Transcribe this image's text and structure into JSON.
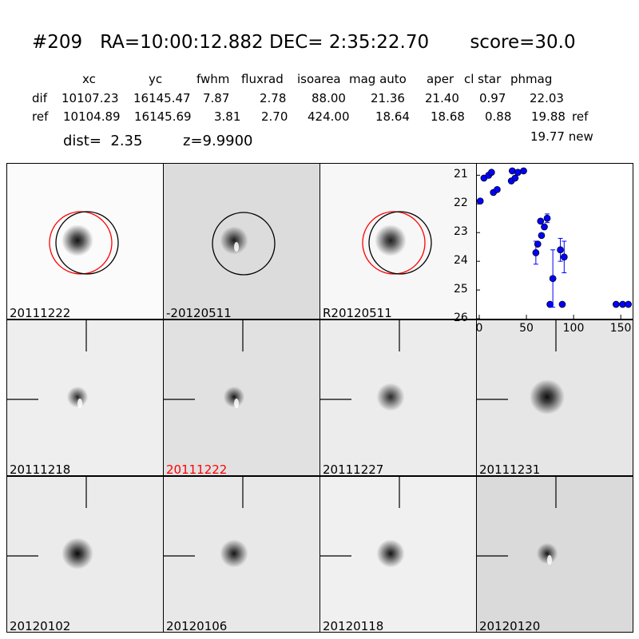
{
  "header": {
    "id": "#209",
    "ra": "RA=10:00:12.882",
    "dec": "DEC= 2:35:22.70",
    "score": "score=30.0",
    "columns": [
      "xc",
      "yc",
      "fwhm",
      "fluxrad",
      "isoarea",
      "mag auto",
      "aper",
      "cl star",
      "phmag"
    ],
    "rows": [
      {
        "label": "dif",
        "values": [
          "10107.23",
          "16145.47",
          "7.87",
          "2.78",
          "88.00",
          "21.36",
          "21.40",
          "0.97",
          "22.03"
        ],
        "suffix": ""
      },
      {
        "label": "ref",
        "values": [
          "10104.89",
          "16145.69",
          "3.81",
          "2.70",
          "424.00",
          "18.64",
          "18.68",
          "0.88",
          "19.88"
        ],
        "suffix": "ref"
      }
    ],
    "new_mag": "19.77 new",
    "dist": "dist=  2.35",
    "z": "z=9.9900"
  },
  "panels": [
    {
      "label": "20111222",
      "highlight": false
    },
    {
      "label": "-20120511",
      "highlight": false
    },
    {
      "label": "R20120511",
      "highlight": false
    },
    {
      "label": "20111218",
      "highlight": false
    },
    {
      "label": "20111222",
      "highlight": true
    },
    {
      "label": "20111227",
      "highlight": false
    },
    {
      "label": "20111231",
      "highlight": false
    },
    {
      "label": "20120102",
      "highlight": false
    },
    {
      "label": "20120106",
      "highlight": false
    },
    {
      "label": "20120118",
      "highlight": false
    },
    {
      "label": "20120120",
      "highlight": false
    }
  ],
  "colors": {
    "point": "#0000ff",
    "red_circle": "#ff0000",
    "highlight_label": "#ff0000"
  },
  "chart_data": {
    "type": "scatter",
    "xlim": [
      0,
      160
    ],
    "ylim": [
      26,
      20.6
    ],
    "y_inverted": true,
    "x_ticks": [
      "0",
      "50",
      "100",
      "150"
    ],
    "y_ticks": [
      "21",
      "22",
      "23",
      "24",
      "25",
      "26"
    ],
    "series": [
      {
        "points": [
          {
            "x": 1,
            "y": 21.9,
            "err": 0
          },
          {
            "x": 5,
            "y": 21.1,
            "err": 0
          },
          {
            "x": 10,
            "y": 21.0,
            "err": 0
          },
          {
            "x": 13,
            "y": 20.9,
            "err": 0
          },
          {
            "x": 15,
            "y": 21.6,
            "err": 0
          },
          {
            "x": 19,
            "y": 21.5,
            "err": 0
          },
          {
            "x": 34,
            "y": 21.2,
            "err": 0
          },
          {
            "x": 35,
            "y": 20.85,
            "err": 0
          },
          {
            "x": 38,
            "y": 21.1,
            "err": 0
          },
          {
            "x": 41,
            "y": 20.9,
            "err": 0
          },
          {
            "x": 47,
            "y": 20.85,
            "err": 0
          },
          {
            "x": 60,
            "y": 23.7,
            "err": 0.4
          },
          {
            "x": 62,
            "y": 23.4,
            "err": 0
          },
          {
            "x": 65,
            "y": 22.6,
            "err": 0
          },
          {
            "x": 66,
            "y": 23.1,
            "err": 0
          },
          {
            "x": 69,
            "y": 22.8,
            "err": 0
          },
          {
            "x": 72,
            "y": 22.5,
            "err": 0.15
          },
          {
            "x": 75,
            "y": 25.5,
            "err": 0
          },
          {
            "x": 78,
            "y": 24.6,
            "err": 1.0
          },
          {
            "x": 86,
            "y": 23.6,
            "err": 0.4
          },
          {
            "x": 88,
            "y": 25.5,
            "err": 0
          },
          {
            "x": 90,
            "y": 23.85,
            "err": 0.55
          },
          {
            "x": 145,
            "y": 25.5,
            "err": 0
          },
          {
            "x": 152,
            "y": 25.5,
            "err": 0
          },
          {
            "x": 158,
            "y": 25.5,
            "err": 0
          }
        ]
      }
    ]
  }
}
